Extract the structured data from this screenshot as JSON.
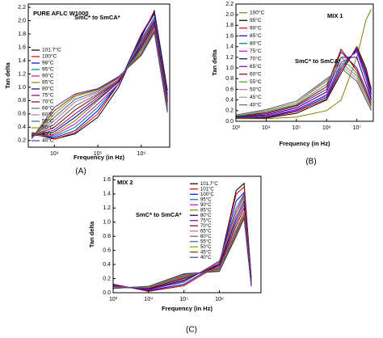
{
  "chart_data": [
    {
      "type": "line",
      "title": "PURE AFLC W1000",
      "annotation": "SmC* to SmCA*",
      "caption": "(A)",
      "x_label": "Frequency (in Hz)",
      "y_label": "Tan delta",
      "xscale": "log",
      "legend": "lower left",
      "xlim": [
        2500,
        4500000
      ],
      "ylim": [
        0.1,
        2.25
      ],
      "xticks": [
        {
          "value": 10000,
          "label": "10⁴"
        },
        {
          "value": 100000,
          "label": "10⁵"
        },
        {
          "value": 1000000,
          "label": "10⁶"
        }
      ],
      "yticks": [
        0.2,
        0.4,
        0.6,
        0.8,
        {
          "value": 1,
          "label": "1.0"
        },
        1.2,
        1.4,
        1.6,
        1.8,
        {
          "value": 2,
          "label": "2.0"
        },
        2.2
      ],
      "x": [
        3000,
        10000,
        30000,
        100000,
        300000,
        1000000,
        2000000,
        4000000
      ],
      "series": [
        {
          "name": "101.7°C",
          "color": "#000000",
          "values": [
            0.32,
            0.22,
            0.3,
            0.55,
            1.0,
            1.75,
            2.15,
            0.95
          ]
        },
        {
          "name": "100°C",
          "color": "#e00000",
          "values": [
            0.3,
            0.22,
            0.32,
            0.6,
            1.05,
            1.8,
            2.12,
            0.9
          ]
        },
        {
          "name": "98°C",
          "color": "#0000e0",
          "values": [
            0.3,
            0.24,
            0.35,
            0.65,
            1.05,
            1.78,
            2.1,
            0.88
          ]
        },
        {
          "name": "95°C",
          "color": "#008080",
          "values": [
            0.28,
            0.26,
            0.4,
            0.7,
            1.05,
            1.72,
            2.05,
            0.85
          ]
        },
        {
          "name": "90°C",
          "color": "#d000d0",
          "values": [
            0.28,
            0.28,
            0.45,
            0.75,
            1.05,
            1.7,
            2.02,
            0.82
          ]
        },
        {
          "name": "85°C",
          "color": "#808000",
          "values": [
            0.27,
            0.3,
            0.5,
            0.8,
            1.08,
            1.68,
            2.0,
            0.8
          ]
        },
        {
          "name": "80°C",
          "color": "#000080",
          "values": [
            0.27,
            0.33,
            0.55,
            0.82,
            1.08,
            1.65,
            1.98,
            0.78
          ]
        },
        {
          "name": "75°C",
          "color": "#800080",
          "values": [
            0.26,
            0.36,
            0.6,
            0.85,
            1.1,
            1.62,
            1.95,
            0.75
          ]
        },
        {
          "name": "70°C",
          "color": "#800000",
          "values": [
            0.26,
            0.4,
            0.66,
            0.88,
            1.1,
            1.6,
            1.92,
            0.72
          ]
        },
        {
          "name": "68°C",
          "color": "#666666",
          "values": [
            0.25,
            0.45,
            0.72,
            0.9,
            1.12,
            1.58,
            1.9,
            0.7
          ]
        },
        {
          "name": "60°C",
          "color": "#cc6699",
          "values": [
            0.25,
            0.5,
            0.78,
            0.92,
            1.12,
            1.55,
            1.88,
            0.68
          ]
        },
        {
          "name": "55°C",
          "color": "#336699",
          "values": [
            0.24,
            0.55,
            0.82,
            0.94,
            1.14,
            1.55,
            1.86,
            0.66
          ]
        },
        {
          "name": "50°C",
          "color": "#999900",
          "values": [
            0.24,
            0.6,
            0.86,
            0.96,
            1.15,
            1.52,
            1.85,
            0.65
          ]
        },
        {
          "name": "45°C",
          "color": "#993300",
          "values": [
            0.23,
            0.65,
            0.88,
            0.97,
            1.15,
            1.5,
            1.84,
            0.64
          ]
        },
        {
          "name": "40°C",
          "color": "#4040a0",
          "values": [
            0.23,
            0.7,
            0.9,
            0.98,
            1.16,
            1.48,
            1.82,
            0.62
          ]
        }
      ]
    },
    {
      "type": "line",
      "title": "MIX 1",
      "annotation": "SmC* to SmCA*",
      "caption": "(B)",
      "x_label": "Frequency (in Hz)",
      "y_label": "Tan delta",
      "xscale": "log",
      "legend": "upper left",
      "xlim": [
        1000,
        35000000
      ],
      "ylim": [
        0,
        2.2
      ],
      "xticks": [
        {
          "value": 1000,
          "label": "10³"
        },
        {
          "value": 10000,
          "label": "10⁴"
        },
        {
          "value": 100000,
          "label": "10⁵"
        },
        {
          "value": 1000000,
          "label": "10⁶"
        },
        {
          "value": 10000000,
          "label": "10⁷"
        }
      ],
      "yticks": [
        {
          "value": 0,
          "label": "0.0"
        },
        0.2,
        0.4,
        0.6,
        0.8,
        {
          "value": 1,
          "label": "1.0"
        },
        1.2,
        1.4,
        1.6,
        1.8,
        {
          "value": 2,
          "label": "2.0"
        },
        2.2
      ],
      "x": [
        1000,
        10000,
        100000,
        1000000,
        3000000,
        10000000,
        20000000,
        30000000
      ],
      "series": [
        {
          "name": "100°C",
          "color": "#808000",
          "values": [
            0.05,
            0.05,
            0.08,
            0.2,
            0.4,
            1.2,
            1.9,
            2.1
          ]
        },
        {
          "name": "95°C",
          "color": "#000000",
          "values": [
            0.06,
            0.06,
            0.15,
            0.4,
            0.9,
            1.4,
            1.0,
            0.6
          ]
        },
        {
          "name": "90°C",
          "color": "#e00000",
          "values": [
            0.06,
            0.07,
            0.18,
            0.42,
            0.95,
            1.38,
            0.95,
            0.55
          ]
        },
        {
          "name": "85°C",
          "color": "#0000e0",
          "values": [
            0.07,
            0.08,
            0.2,
            0.45,
            1.0,
            1.35,
            0.9,
            0.5
          ]
        },
        {
          "name": "80°C",
          "color": "#008080",
          "values": [
            0.07,
            0.09,
            0.22,
            0.48,
            1.05,
            1.32,
            0.85,
            0.45
          ]
        },
        {
          "name": "75°C",
          "color": "#d000d0",
          "values": [
            0.08,
            0.1,
            0.22,
            0.5,
            1.1,
            1.3,
            0.8,
            0.42
          ]
        },
        {
          "name": "70°C",
          "color": "#000080",
          "values": [
            0.08,
            0.12,
            0.25,
            0.55,
            1.2,
            1.2,
            0.7,
            0.4
          ]
        },
        {
          "name": "65°C",
          "color": "#800080",
          "values": [
            0.09,
            0.14,
            0.28,
            0.6,
            1.3,
            1.0,
            0.6,
            0.35
          ]
        },
        {
          "name": "60°C",
          "color": "#800000",
          "values": [
            0.1,
            0.16,
            0.3,
            0.65,
            1.35,
            0.95,
            0.55,
            0.3
          ]
        },
        {
          "name": "55°C",
          "color": "#33aa33",
          "values": [
            0.1,
            0.18,
            0.32,
            0.7,
            1.2,
            0.9,
            0.5,
            0.28
          ]
        },
        {
          "name": "50°C",
          "color": "#cc6699",
          "values": [
            0.12,
            0.2,
            0.35,
            0.75,
            1.1,
            0.85,
            0.45,
            0.25
          ]
        },
        {
          "name": "45°C",
          "color": "#999999",
          "values": [
            0.12,
            0.2,
            0.35,
            0.78,
            1.05,
            0.8,
            0.4,
            0.22
          ]
        },
        {
          "name": "40°C",
          "color": "#666666",
          "values": [
            0.12,
            0.22,
            0.38,
            0.8,
            1.0,
            0.75,
            0.4,
            0.2
          ]
        }
      ]
    },
    {
      "type": "line",
      "title": "MIX 2",
      "annotation": "SmC* to SmCA*",
      "caption": "(C)",
      "x_label": "Frequency (in Hz)",
      "y_label": "Tan delta",
      "xscale": "log",
      "legend": "upper right",
      "xlim": [
        1000,
        15000000
      ],
      "ylim": [
        0,
        1.65
      ],
      "xticks": [
        {
          "value": 1000,
          "label": "10³"
        },
        {
          "value": 10000,
          "label": "10⁴"
        },
        {
          "value": 100000,
          "label": "10⁵"
        },
        {
          "value": 1000000,
          "label": "10⁶"
        }
      ],
      "yticks": [
        {
          "value": 0,
          "label": "0.0"
        },
        0.2,
        0.4,
        0.6,
        0.8,
        {
          "value": 1,
          "label": "1.0"
        },
        1.2,
        1.4,
        1.6
      ],
      "x": [
        1000,
        10000,
        100000,
        1000000,
        3000000,
        5000000,
        8000000
      ],
      "series": [
        {
          "name": "101.7°C",
          "color": "#000000",
          "values": [
            0.12,
            0.02,
            0.1,
            0.4,
            1.45,
            1.55,
            0.2
          ]
        },
        {
          "name": "101°C",
          "color": "#e00000",
          "values": [
            0.12,
            0.02,
            0.1,
            0.4,
            1.4,
            1.5,
            0.2
          ]
        },
        {
          "name": "100°C",
          "color": "#0000e0",
          "values": [
            0.11,
            0.03,
            0.12,
            0.42,
            1.3,
            1.42,
            0.18
          ]
        },
        {
          "name": "95°C",
          "color": "#008080",
          "values": [
            0.1,
            0.04,
            0.15,
            0.45,
            1.2,
            1.4,
            0.15
          ]
        },
        {
          "name": "90°C",
          "color": "#d000d0",
          "values": [
            0.1,
            0.04,
            0.16,
            0.44,
            1.15,
            1.38,
            0.14
          ]
        },
        {
          "name": "85°C",
          "color": "#808000",
          "values": [
            0.09,
            0.05,
            0.17,
            0.42,
            1.1,
            1.35,
            0.13
          ]
        },
        {
          "name": "80°C",
          "color": "#000080",
          "values": [
            0.09,
            0.05,
            0.18,
            0.4,
            1.05,
            1.3,
            0.12
          ]
        },
        {
          "name": "75°C",
          "color": "#800080",
          "values": [
            0.08,
            0.06,
            0.2,
            0.38,
            1.0,
            1.25,
            0.12
          ]
        },
        {
          "name": "70°C",
          "color": "#800000",
          "values": [
            0.08,
            0.06,
            0.21,
            0.36,
            0.95,
            1.2,
            0.11
          ]
        },
        {
          "name": "65°C",
          "color": "#cc6699",
          "values": [
            0.08,
            0.07,
            0.22,
            0.35,
            0.9,
            1.15,
            0.11
          ]
        },
        {
          "name": "60°C",
          "color": "#666666",
          "values": [
            0.07,
            0.07,
            0.23,
            0.34,
            0.88,
            1.12,
            0.1
          ]
        },
        {
          "name": "55°C",
          "color": "#336699",
          "values": [
            0.07,
            0.08,
            0.24,
            0.33,
            0.86,
            1.1,
            0.1
          ]
        },
        {
          "name": "50°C",
          "color": "#999900",
          "values": [
            0.07,
            0.08,
            0.25,
            0.32,
            0.84,
            1.1,
            0.1
          ]
        },
        {
          "name": "45°C",
          "color": "#993300",
          "values": [
            0.06,
            0.09,
            0.26,
            0.31,
            0.82,
            1.08,
            0.09
          ]
        },
        {
          "name": "40°C",
          "color": "#4040a0",
          "values": [
            0.06,
            0.09,
            0.27,
            0.3,
            0.8,
            1.05,
            0.09
          ]
        }
      ]
    }
  ]
}
